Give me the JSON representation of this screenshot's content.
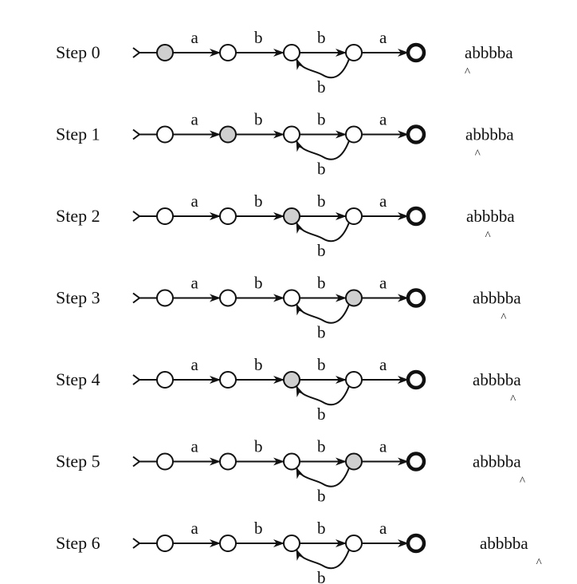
{
  "steps": [
    {
      "label": "Step 0",
      "active_state": 0,
      "input": "abbbba",
      "cursor": 0
    },
    {
      "label": "Step 1",
      "active_state": 1,
      "input": "abbbba",
      "cursor": 1
    },
    {
      "label": "Step 2",
      "active_state": 2,
      "input": "abbbba",
      "cursor": 2
    },
    {
      "label": "Step 3",
      "active_state": 3,
      "input": "abbbba",
      "cursor": 3
    },
    {
      "label": "Step 4",
      "active_state": 2,
      "input": "abbbba",
      "cursor": 4
    },
    {
      "label": "Step 5",
      "active_state": 3,
      "input": "abbbba",
      "cursor": 5
    },
    {
      "label": "Step 6",
      "active_state": null,
      "input": "abbbba",
      "cursor": 6
    }
  ],
  "automaton": {
    "state_count": 5,
    "final_state": 4,
    "transitions": [
      {
        "from": 0,
        "to": 1,
        "symbol": "a"
      },
      {
        "from": 1,
        "to": 2,
        "symbol": "b"
      },
      {
        "from": 2,
        "to": 3,
        "symbol": "b"
      },
      {
        "from": 3,
        "to": 4,
        "symbol": "a"
      },
      {
        "from": 3,
        "to": 2,
        "symbol": "b"
      }
    ]
  },
  "cursor_symbol": "^"
}
